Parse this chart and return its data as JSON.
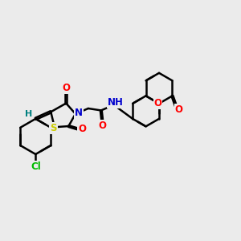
{
  "background_color": "#ebebeb",
  "bond_color": "#000000",
  "bond_width": 1.8,
  "atom_colors": {
    "O": "#ff0000",
    "N": "#0000cd",
    "S": "#cccc00",
    "Cl": "#00bb00",
    "H_label": "#008080",
    "C": "#000000"
  },
  "font_size": 8.5,
  "title": ""
}
